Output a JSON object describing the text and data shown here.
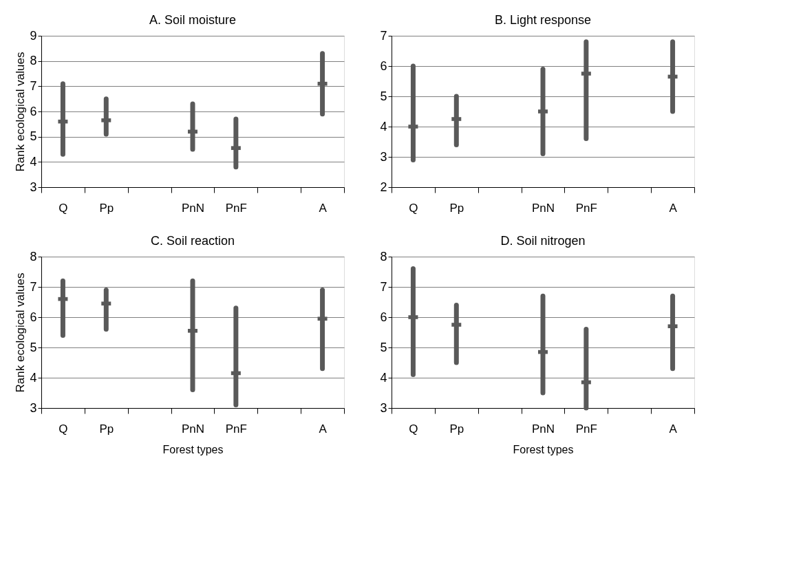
{
  "chart_data": [
    {
      "type": "scatter",
      "title": "A. Soil moisture",
      "ylabel": "Rank ecological values",
      "categories": [
        "Q",
        "Pp",
        null,
        "PnN",
        "PnF",
        null,
        "A"
      ],
      "ylim": [
        3,
        9
      ],
      "yticks": [
        3,
        4,
        5,
        6,
        7,
        8,
        9
      ],
      "grid": "y",
      "series": [
        {
          "color": "#595959",
          "values": [
            5.6,
            5.65,
            null,
            5.2,
            4.55,
            null,
            7.1
          ],
          "errors": [
            [
              4.3,
              7.1
            ],
            [
              5.1,
              6.5
            ],
            null,
            [
              4.5,
              6.3
            ],
            [
              3.8,
              5.7
            ],
            null,
            [
              5.9,
              8.3
            ]
          ]
        }
      ]
    },
    {
      "type": "scatter",
      "title": "B. Light response",
      "categories": [
        "Q",
        "Pp",
        null,
        "PnN",
        "PnF",
        null,
        "A"
      ],
      "ylim": [
        2,
        7
      ],
      "yticks": [
        2,
        3,
        4,
        5,
        6,
        7
      ],
      "grid": "y",
      "series": [
        {
          "color": "#595959",
          "values": [
            4.0,
            4.25,
            null,
            4.5,
            5.75,
            null,
            5.65
          ],
          "errors": [
            [
              2.9,
              6.0
            ],
            [
              3.4,
              5.0
            ],
            null,
            [
              3.1,
              5.9
            ],
            [
              3.6,
              6.8
            ],
            null,
            [
              4.5,
              6.8
            ]
          ]
        }
      ]
    },
    {
      "type": "scatter",
      "title": "C. Soil reaction",
      "ylabel": "Rank ecological values",
      "xlabel": "Forest types",
      "categories": [
        "Q",
        "Pp",
        null,
        "PnN",
        "PnF",
        null,
        "A"
      ],
      "ylim": [
        3,
        8
      ],
      "yticks": [
        3,
        4,
        5,
        6,
        7,
        8
      ],
      "grid": "y",
      "series": [
        {
          "color": "#595959",
          "values": [
            6.6,
            6.45,
            null,
            5.55,
            4.15,
            null,
            5.95
          ],
          "errors": [
            [
              5.4,
              7.2
            ],
            [
              5.6,
              6.9
            ],
            null,
            [
              3.6,
              7.2
            ],
            [
              3.1,
              6.3
            ],
            null,
            [
              4.3,
              6.9
            ]
          ]
        }
      ]
    },
    {
      "type": "scatter",
      "title": "D. Soil nitrogen",
      "xlabel": "Forest types",
      "categories": [
        "Q",
        "Pp",
        null,
        "PnN",
        "PnF",
        null,
        "A"
      ],
      "ylim": [
        3,
        8
      ],
      "yticks": [
        3,
        4,
        5,
        6,
        7,
        8
      ],
      "grid": "y",
      "series": [
        {
          "color": "#595959",
          "values": [
            6.0,
            5.75,
            null,
            4.85,
            3.85,
            null,
            5.7
          ],
          "errors": [
            [
              4.1,
              7.6
            ],
            [
              4.5,
              6.4
            ],
            null,
            [
              3.5,
              6.7
            ],
            [
              3.0,
              5.6
            ],
            null,
            [
              4.3,
              6.7
            ]
          ]
        }
      ]
    }
  ]
}
